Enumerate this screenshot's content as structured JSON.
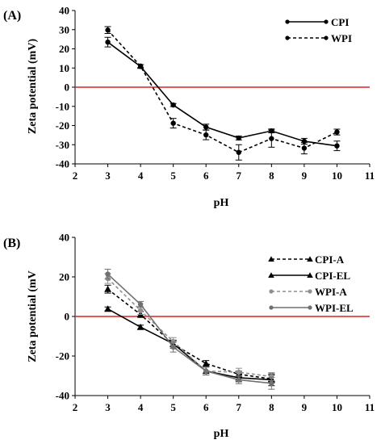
{
  "chart_data": [
    {
      "panel_label": "(A)",
      "type": "line",
      "xlabel": "pH",
      "ylabel": "Zeta potential (mV)",
      "xlim": [
        2,
        11
      ],
      "ylim": [
        -40,
        40
      ],
      "xticks": [
        "2",
        "3",
        "4",
        "5",
        "6",
        "7",
        "8",
        "9",
        "10",
        "11"
      ],
      "yticks": [
        "40",
        "30",
        "20",
        "10",
        "0",
        "-10",
        "-20",
        "-30",
        "-40"
      ],
      "reference_line": {
        "y": 0,
        "color": "#e02020"
      },
      "legend_position": "top-right",
      "series": [
        {
          "name": "CPI",
          "style": "solid",
          "color": "#000000",
          "marker": "circle",
          "x": [
            3,
            4,
            5,
            6,
            7,
            8,
            9,
            10
          ],
          "y": [
            23.5,
            10.8,
            -9.3,
            -20.8,
            -26.5,
            -22.8,
            -28.2,
            -30.6
          ],
          "err": [
            2.5,
            1,
            0.8,
            1.5,
            1,
            1,
            1.5,
            2.5
          ]
        },
        {
          "name": "WPI",
          "style": "dashed",
          "color": "#000000",
          "marker": "circle",
          "x": [
            3,
            4,
            5,
            6,
            7,
            8,
            9,
            10
          ],
          "y": [
            29.8,
            11,
            -18.8,
            -24.9,
            -34,
            -26.8,
            -31.8,
            -23.4
          ],
          "err": [
            1.8,
            0.8,
            2.5,
            2.5,
            4,
            4.5,
            3,
            1.5
          ]
        }
      ]
    },
    {
      "panel_label": "(B)",
      "type": "line",
      "xlabel": "pH",
      "ylabel": "Zeta potential (mV",
      "xlim": [
        2,
        11
      ],
      "ylim": [
        -40,
        40
      ],
      "xticks": [
        "2",
        "3",
        "4",
        "5",
        "6",
        "7",
        "8",
        "9",
        "10",
        "11"
      ],
      "yticks": [
        "40",
        "20",
        "0",
        "-20",
        "-40"
      ],
      "reference_line": {
        "y": 0,
        "color": "#e02020"
      },
      "legend_position": "top-right",
      "series": [
        {
          "name": "CPI-A",
          "style": "dashed",
          "color": "#000000",
          "marker": "triangle",
          "x": [
            3,
            4,
            5,
            6,
            7,
            8
          ],
          "y": [
            13.8,
            1,
            -14,
            -23.8,
            -29.2,
            -31.6
          ],
          "err": [
            2,
            1.5,
            2,
            1.5,
            1.5,
            2
          ]
        },
        {
          "name": "CPI-EL",
          "style": "solid",
          "color": "#000000",
          "marker": "triangle",
          "x": [
            3,
            4,
            5,
            6,
            7,
            8
          ],
          "y": [
            3.8,
            -5.4,
            -13.8,
            -27.6,
            -31,
            -32
          ],
          "err": [
            1,
            1,
            1.5,
            2,
            2,
            3
          ]
        },
        {
          "name": "WPI-A",
          "style": "dashed",
          "color": "#909090",
          "marker": "circle",
          "x": [
            3,
            4,
            5,
            6,
            7,
            8
          ],
          "y": [
            19.2,
            3,
            -12.7,
            -27.6,
            -28.2,
            -30.4
          ],
          "err": [
            2.5,
            2,
            2,
            2,
            2,
            2
          ]
        },
        {
          "name": "WPI-EL",
          "style": "solid",
          "color": "#707070",
          "marker": "circle",
          "x": [
            3,
            4,
            5,
            6,
            7,
            8
          ],
          "y": [
            21.4,
            6.1,
            -15.5,
            -27.6,
            -32,
            -33.8
          ],
          "err": [
            2.5,
            1.5,
            2.5,
            2,
            2,
            3
          ]
        }
      ]
    }
  ]
}
